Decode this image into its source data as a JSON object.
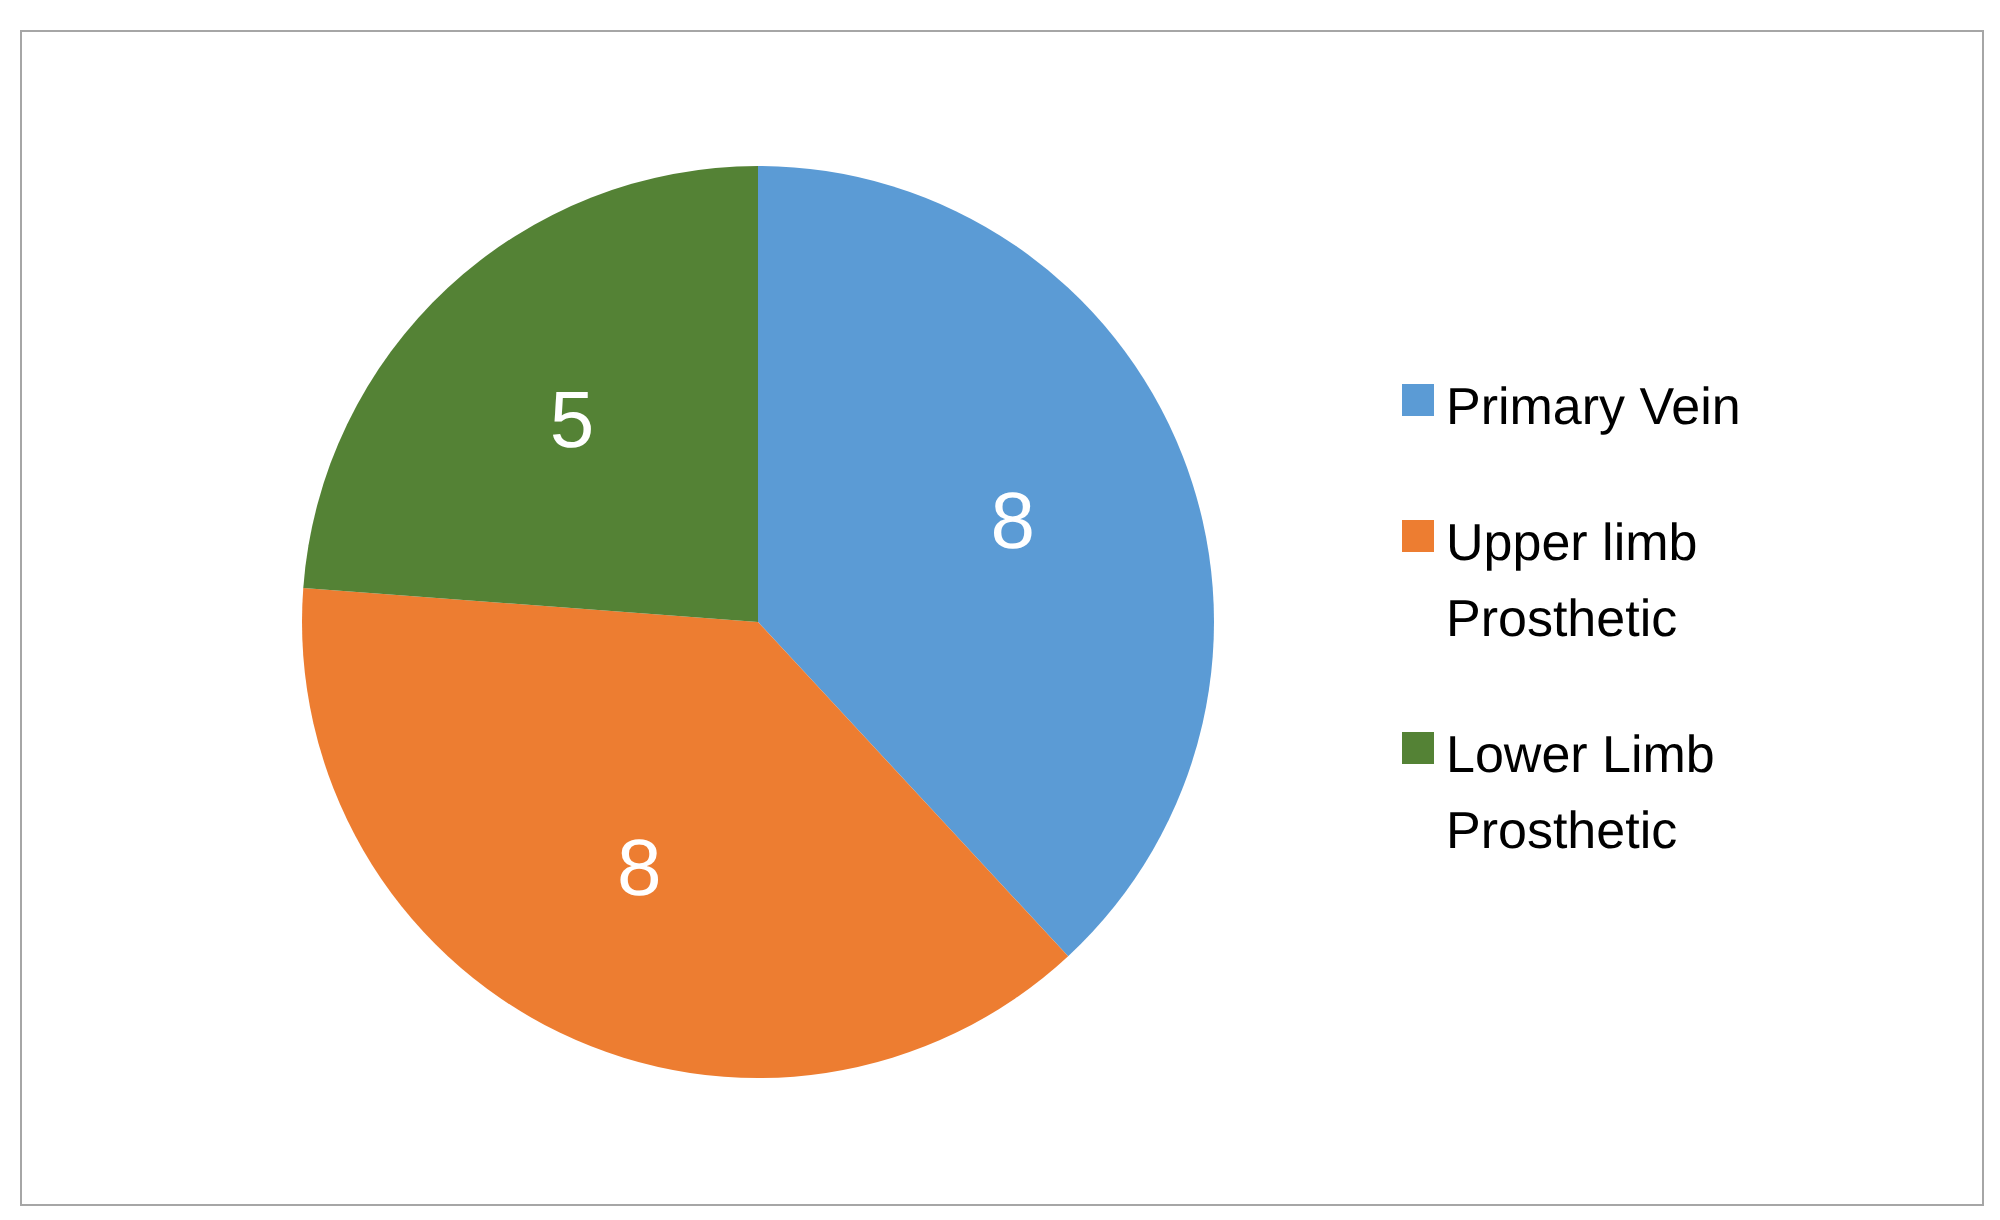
{
  "chart_data": {
    "type": "pie",
    "categories": [
      "Primary Vein",
      "Upper limb Prosthetic",
      "Lower Limb Prosthetic"
    ],
    "values": [
      8,
      8,
      5
    ],
    "colors": [
      "#5b9bd5",
      "#ed7d31",
      "#548235"
    ],
    "data_labels": true,
    "legend": "right"
  }
}
